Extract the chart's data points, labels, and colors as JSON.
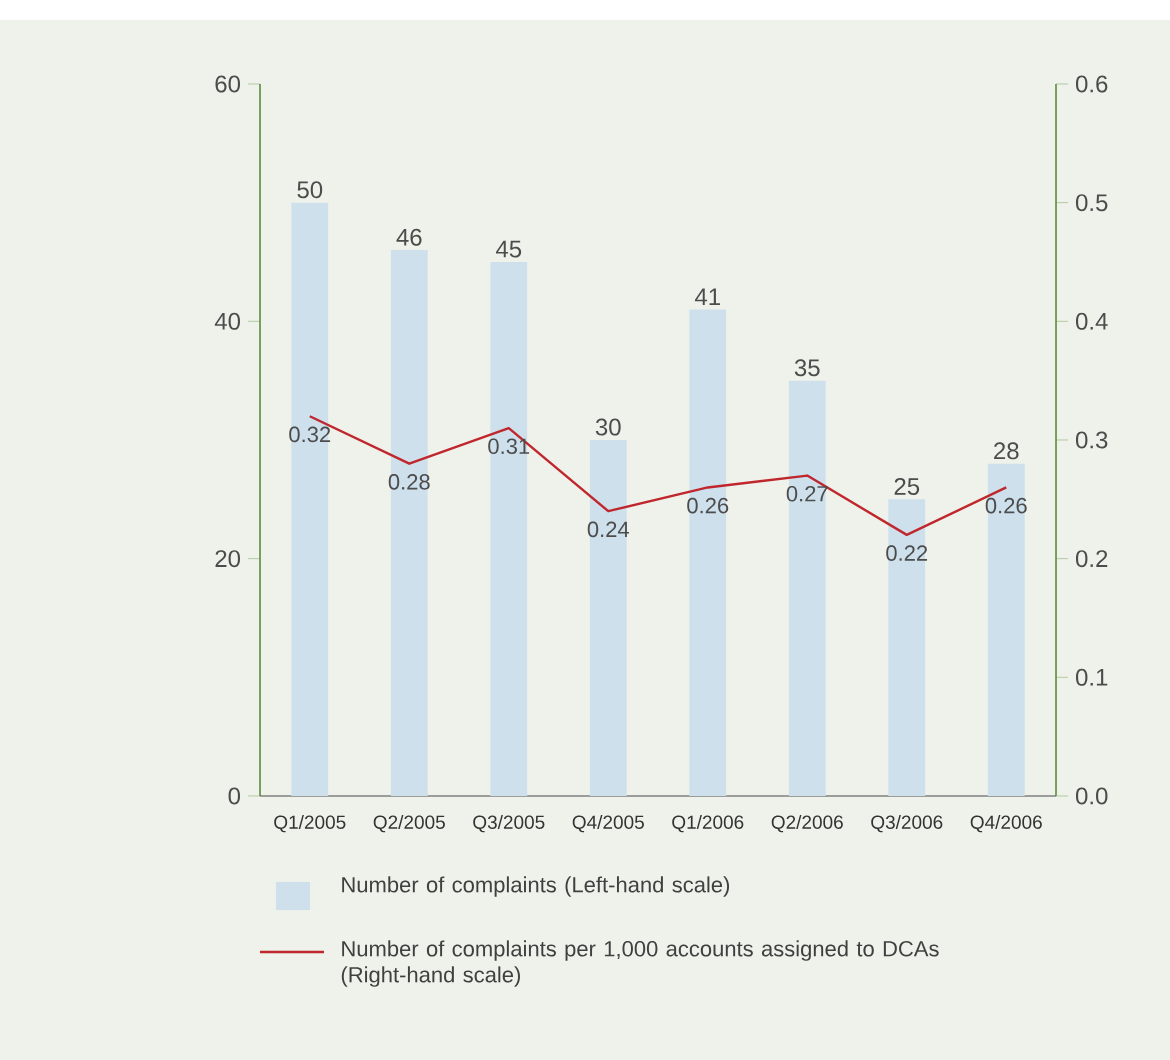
{
  "chart_data": {
    "type": "bar",
    "categories": [
      "Q1/2005",
      "Q2/2005",
      "Q3/2005",
      "Q4/2005",
      "Q1/2006",
      "Q2/2006",
      "Q3/2006",
      "Q4/2006"
    ],
    "series": [
      {
        "name": "Number of complaints (Left-hand scale)",
        "color": "#cde0ec",
        "values": [
          50,
          46,
          45,
          30,
          41,
          35,
          25,
          28
        ]
      },
      {
        "name": "Number of complaints per 1,000 accounts assigned to DCAs (Right-hand scale)",
        "type": "line",
        "axis": "y2",
        "color": "#c0272d",
        "line_style": "solid",
        "values": [
          0.32,
          0.28,
          0.31,
          0.24,
          0.26,
          0.27,
          0.22,
          0.26
        ]
      }
    ],
    "ylim": [
      0,
      60
    ],
    "yticks": [
      0,
      20,
      40,
      60
    ],
    "y2lim": [
      0,
      0.6
    ],
    "y2ticks": [
      {
        "value": 0,
        "label": "0.0"
      },
      0.1,
      0.2,
      0.3,
      0.4,
      0.5,
      0.6
    ],
    "data_labels": true,
    "grid": false,
    "legend": "bottom"
  }
}
